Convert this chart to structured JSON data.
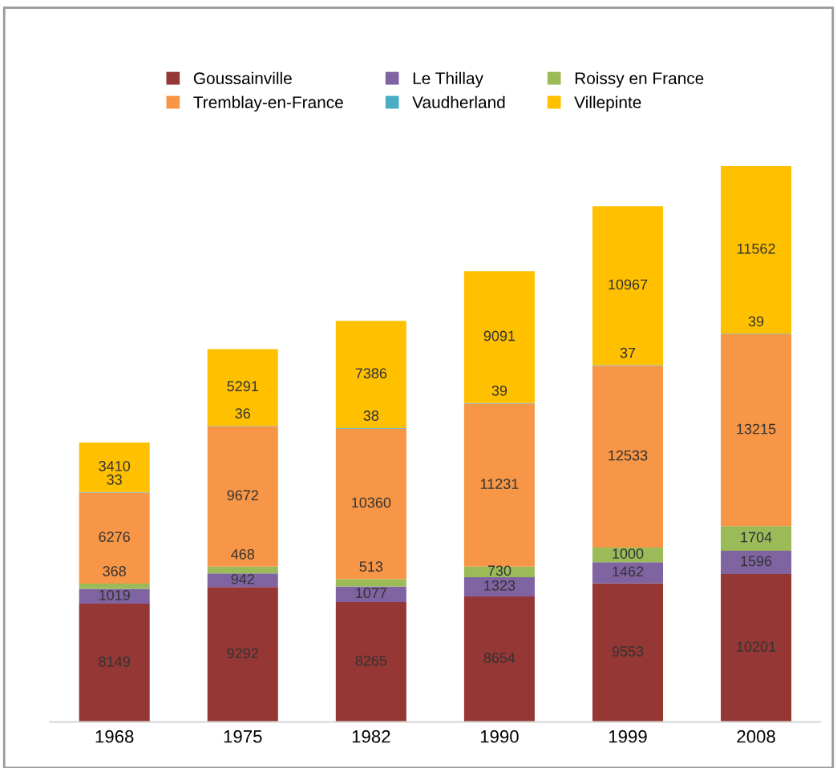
{
  "chart_data": {
    "type": "bar",
    "stacked": true,
    "data_labels": true,
    "legend": "top",
    "grid": false,
    "categories": [
      "1968",
      "1975",
      "1982",
      "1990",
      "1999",
      "2008"
    ],
    "series": [
      {
        "name": "Goussainville",
        "color": "#953735",
        "values": [
          8149,
          9292,
          8265,
          8654,
          9553,
          10201
        ]
      },
      {
        "name": "Le Thillay",
        "color": "#8064a2",
        "values": [
          1019,
          942,
          1077,
          1323,
          1462,
          1596
        ]
      },
      {
        "name": "Roissy en France",
        "color": "#9bbb59",
        "values": [
          368,
          468,
          513,
          730,
          1000,
          1704
        ]
      },
      {
        "name": "Tremblay-en-France",
        "color": "#f79646",
        "values": [
          6276,
          9672,
          10360,
          11231,
          12533,
          13215
        ]
      },
      {
        "name": "Vaudherland",
        "color": "#4bacc6",
        "values": [
          33,
          36,
          38,
          39,
          37,
          39
        ]
      },
      {
        "name": "Villepinte",
        "color": "#ffc000",
        "values": [
          3410,
          5291,
          7386,
          9091,
          10967,
          11562
        ]
      }
    ]
  }
}
